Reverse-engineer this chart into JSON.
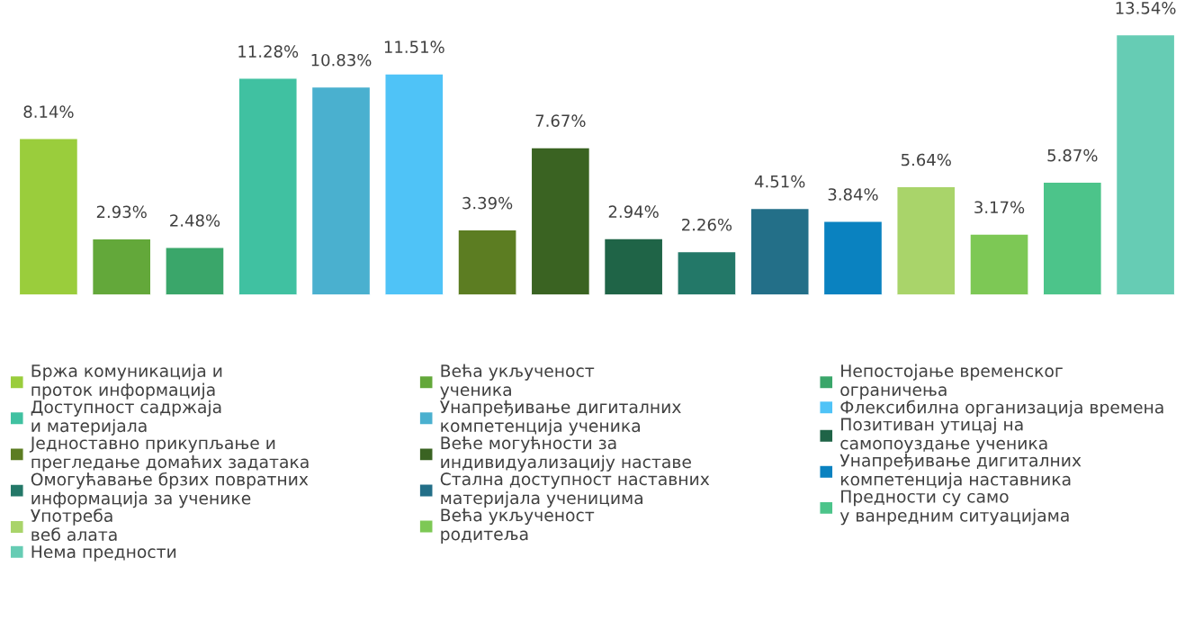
{
  "chart_data": {
    "type": "bar",
    "stacked": true,
    "categories": [
      null,
      null,
      null,
      null,
      null,
      null,
      null,
      null,
      null,
      null,
      null,
      null,
      null,
      null,
      null,
      null
    ],
    "series": [
      {
        "name": "Бржа комуникација и\nпроток информација",
        "color": "#9acd3c",
        "values": [
          8.14,
          null,
          null,
          null,
          null,
          null,
          null,
          null,
          null,
          null,
          null,
          null,
          null,
          null,
          null,
          null
        ],
        "value_labels": [
          "8.14%",
          null,
          null,
          null,
          null,
          null,
          null,
          null,
          null,
          null,
          null,
          null,
          null,
          null,
          null,
          null
        ]
      },
      {
        "name": "Већа укљученост\nученика",
        "color": "#63a83a",
        "values": [
          null,
          2.93,
          null,
          null,
          null,
          null,
          null,
          null,
          null,
          null,
          null,
          null,
          null,
          null,
          null,
          null
        ],
        "value_labels": [
          null,
          "2.93%",
          null,
          null,
          null,
          null,
          null,
          null,
          null,
          null,
          null,
          null,
          null,
          null,
          null,
          null
        ]
      },
      {
        "name": "Непостојање временског\nограничења",
        "color": "#3aa66a",
        "values": [
          null,
          null,
          2.48,
          null,
          null,
          null,
          null,
          null,
          null,
          null,
          null,
          null,
          null,
          null,
          null,
          null
        ],
        "value_labels": [
          null,
          null,
          "2.48%",
          null,
          null,
          null,
          null,
          null,
          null,
          null,
          null,
          null,
          null,
          null,
          null,
          null
        ]
      },
      {
        "name": "Доступност садржаја\nи материјала",
        "color": "#40c1a1",
        "values": [
          null,
          null,
          null,
          11.28,
          null,
          null,
          null,
          null,
          null,
          null,
          null,
          null,
          null,
          null,
          null,
          null
        ],
        "value_labels": [
          null,
          null,
          null,
          "11.28%",
          null,
          null,
          null,
          null,
          null,
          null,
          null,
          null,
          null,
          null,
          null,
          null
        ]
      },
      {
        "name": "Унапређивање дигиталних\nкомпетенција ученика",
        "color": "#4ab0cf",
        "values": [
          null,
          null,
          null,
          null,
          10.83,
          null,
          null,
          null,
          null,
          null,
          null,
          null,
          null,
          null,
          null,
          null
        ],
        "value_labels": [
          null,
          null,
          null,
          null,
          "10.83%",
          null,
          null,
          null,
          null,
          null,
          null,
          null,
          null,
          null,
          null,
          null
        ]
      },
      {
        "name": "Флексибилна организација времена",
        "color": "#4fc3f7",
        "values": [
          null,
          null,
          null,
          null,
          null,
          11.51,
          null,
          null,
          null,
          null,
          null,
          null,
          null,
          null,
          null,
          null
        ],
        "value_labels": [
          null,
          null,
          null,
          null,
          null,
          "11.51%",
          null,
          null,
          null,
          null,
          null,
          null,
          null,
          null,
          null,
          null
        ]
      },
      {
        "name": "Једноставно прикупљање и\nпрегледање домаћих задатака",
        "color": "#5c7d22",
        "values": [
          null,
          null,
          null,
          null,
          null,
          null,
          3.39,
          null,
          null,
          null,
          null,
          null,
          null,
          null,
          null,
          null
        ],
        "value_labels": [
          null,
          null,
          null,
          null,
          null,
          null,
          "3.39%",
          null,
          null,
          null,
          null,
          null,
          null,
          null,
          null,
          null
        ]
      },
      {
        "name": "Веће могућности за\nиндивидуализацију наставе",
        "color": "#3a6322",
        "values": [
          null,
          null,
          null,
          null,
          null,
          null,
          null,
          7.67,
          null,
          null,
          null,
          null,
          null,
          null,
          null,
          null
        ],
        "value_labels": [
          null,
          null,
          null,
          null,
          null,
          null,
          null,
          "7.67%",
          null,
          null,
          null,
          null,
          null,
          null,
          null,
          null
        ]
      },
      {
        "name": "Позитиван утицај на\nсамопоуздање ученика",
        "color": "#1f6447",
        "values": [
          null,
          null,
          null,
          null,
          null,
          null,
          null,
          null,
          2.94,
          null,
          null,
          null,
          null,
          null,
          null,
          null
        ],
        "value_labels": [
          null,
          null,
          null,
          null,
          null,
          null,
          null,
          null,
          "2.94%",
          null,
          null,
          null,
          null,
          null,
          null,
          null
        ]
      },
      {
        "name": "Омогућавање брзих повратних\nинформација за ученике",
        "color": "#237868",
        "values": [
          null,
          null,
          null,
          null,
          null,
          null,
          null,
          null,
          null,
          2.26,
          null,
          null,
          null,
          null,
          null,
          null
        ],
        "value_labels": [
          null,
          null,
          null,
          null,
          null,
          null,
          null,
          null,
          null,
          "2.26%",
          null,
          null,
          null,
          null,
          null,
          null
        ]
      },
      {
        "name": "Стална доступност наставних\nматеријала ученицима",
        "color": "#236f88",
        "values": [
          null,
          null,
          null,
          null,
          null,
          null,
          null,
          null,
          null,
          null,
          4.51,
          null,
          null,
          null,
          null,
          null
        ],
        "value_labels": [
          null,
          null,
          null,
          null,
          null,
          null,
          null,
          null,
          null,
          null,
          "4.51%",
          null,
          null,
          null,
          null,
          null
        ]
      },
      {
        "name": "Унапређивање дигиталних\nкомпетенција наставника",
        "color": "#0a82c0",
        "values": [
          null,
          null,
          null,
          null,
          null,
          null,
          null,
          null,
          null,
          null,
          null,
          3.84,
          null,
          null,
          null,
          null
        ],
        "value_labels": [
          null,
          null,
          null,
          null,
          null,
          null,
          null,
          null,
          null,
          null,
          null,
          "3.84%",
          null,
          null,
          null,
          null
        ]
      },
      {
        "name": "Употреба\nвеб алата",
        "color": "#a9d46a",
        "values": [
          null,
          null,
          null,
          null,
          null,
          null,
          null,
          null,
          null,
          null,
          null,
          null,
          5.64,
          null,
          null,
          null
        ],
        "value_labels": [
          null,
          null,
          null,
          null,
          null,
          null,
          null,
          null,
          null,
          null,
          null,
          null,
          "5.64%",
          null,
          null,
          null
        ]
      },
      {
        "name": "Већа укљученост\nродитеља",
        "color": "#7dc855",
        "values": [
          null,
          null,
          null,
          null,
          null,
          null,
          null,
          null,
          null,
          null,
          null,
          null,
          null,
          3.17,
          null,
          null
        ],
        "value_labels": [
          null,
          null,
          null,
          null,
          null,
          null,
          null,
          null,
          null,
          null,
          null,
          null,
          null,
          "3.17%",
          null,
          null
        ]
      },
      {
        "name": "Предности су само\nу ванредним ситуацијама",
        "color": "#4cc48a",
        "values": [
          null,
          null,
          null,
          null,
          null,
          null,
          null,
          null,
          null,
          null,
          null,
          null,
          null,
          null,
          5.87,
          null
        ],
        "value_labels": [
          null,
          null,
          null,
          null,
          null,
          null,
          null,
          null,
          null,
          null,
          null,
          null,
          null,
          null,
          "5.87%",
          null
        ]
      },
      {
        "name": "Нема предности",
        "color": "#66ccb4",
        "values": [
          null,
          null,
          null,
          null,
          null,
          null,
          null,
          null,
          null,
          null,
          null,
          null,
          null,
          null,
          null,
          13.54
        ],
        "value_labels": [
          null,
          null,
          null,
          null,
          null,
          null,
          null,
          null,
          null,
          null,
          null,
          null,
          null,
          null,
          null,
          "13.54%"
        ]
      }
    ],
    "legend": "bottom"
  }
}
